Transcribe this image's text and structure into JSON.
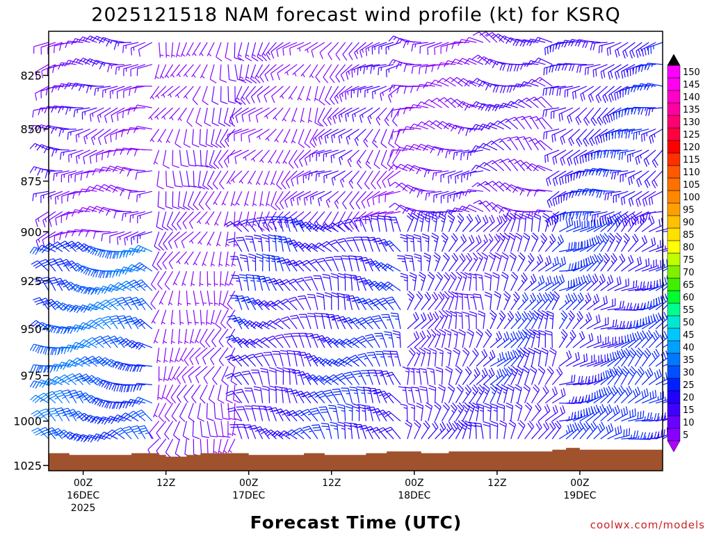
{
  "chart_data": {
    "type": "wind-barb-profile",
    "title": "2025121518 NAM forecast wind profile (kt) for KSRQ",
    "xlabel": "Forecast Time (UTC)",
    "ylabel": "",
    "credit": "coolwx.com/models",
    "yaxis": {
      "ticks": [
        "825",
        "850",
        "875",
        "900",
        "925",
        "950",
        "975",
        "1000",
        "1025"
      ],
      "values": [
        825,
        850,
        875,
        900,
        925,
        950,
        975,
        1000,
        1025
      ],
      "range": [
        805,
        1028
      ],
      "inverted": true
    },
    "xaxis": {
      "range_hours": [
        -5,
        84
      ],
      "ticks": [
        {
          "hour": 0,
          "l1": "00Z",
          "l2": "16DEC",
          "l3": "2025"
        },
        {
          "hour": 12,
          "l1": "12Z",
          "l2": "",
          "l3": ""
        },
        {
          "hour": 24,
          "l1": "00Z",
          "l2": "17DEC",
          "l3": ""
        },
        {
          "hour": 36,
          "l1": "12Z",
          "l2": "",
          "l3": ""
        },
        {
          "hour": 48,
          "l1": "00Z",
          "l2": "18DEC",
          "l3": ""
        },
        {
          "hour": 60,
          "l1": "12Z",
          "l2": "",
          "l3": ""
        },
        {
          "hour": 72,
          "l1": "00Z",
          "l2": "19DEC",
          "l3": ""
        }
      ]
    },
    "colorbar": {
      "labels": [
        "5",
        "10",
        "15",
        "20",
        "25",
        "30",
        "35",
        "40",
        "45",
        "50",
        "55",
        "60",
        "65",
        "70",
        "75",
        "80",
        "85",
        "90",
        "95",
        "100",
        "105",
        "110",
        "115",
        "120",
        "125",
        "130",
        "135",
        "140",
        "145",
        "150"
      ],
      "colors": [
        "#8800ff",
        "#6a00ff",
        "#3f00ff",
        "#2200ff",
        "#0020ff",
        "#0050ff",
        "#0078ff",
        "#00a0ff",
        "#00c8ff",
        "#00e8d0",
        "#00ff90",
        "#00ff30",
        "#40f000",
        "#80f000",
        "#c0ff00",
        "#ffff00",
        "#ffe000",
        "#ffc000",
        "#ffa000",
        "#ff8800",
        "#ff7000",
        "#ff5800",
        "#ff3000",
        "#ff0000",
        "#ff0040",
        "#ff0070",
        "#ff00a0",
        "#ff00c8",
        "#ff00f0",
        "#ff00ff"
      ]
    },
    "ground": {
      "color": "#a0522d",
      "surface_pressure": [
        {
          "hour": -5,
          "p": 1018
        },
        {
          "hour": -2,
          "p": 1018
        },
        {
          "hour": -2,
          "p": 1019
        },
        {
          "hour": 7,
          "p": 1019
        },
        {
          "hour": 7,
          "p": 1018
        },
        {
          "hour": 11,
          "p": 1018
        },
        {
          "hour": 11,
          "p": 1019
        },
        {
          "hour": 12,
          "p": 1019
        },
        {
          "hour": 12,
          "p": 1020
        },
        {
          "hour": 15,
          "p": 1020
        },
        {
          "hour": 15,
          "p": 1019
        },
        {
          "hour": 17,
          "p": 1019
        },
        {
          "hour": 17,
          "p": 1018
        },
        {
          "hour": 24,
          "p": 1018
        },
        {
          "hour": 24,
          "p": 1019
        },
        {
          "hour": 32,
          "p": 1019
        },
        {
          "hour": 32,
          "p": 1018
        },
        {
          "hour": 35,
          "p": 1018
        },
        {
          "hour": 35,
          "p": 1019
        },
        {
          "hour": 41,
          "p": 1019
        },
        {
          "hour": 41,
          "p": 1018
        },
        {
          "hour": 44,
          "p": 1018
        },
        {
          "hour": 44,
          "p": 1017
        },
        {
          "hour": 49,
          "p": 1017
        },
        {
          "hour": 49,
          "p": 1018
        },
        {
          "hour": 53,
          "p": 1018
        },
        {
          "hour": 53,
          "p": 1017
        },
        {
          "hour": 68,
          "p": 1017
        },
        {
          "hour": 68,
          "p": 1016
        },
        {
          "hour": 70,
          "p": 1016
        },
        {
          "hour": 70,
          "p": 1015
        },
        {
          "hour": 72,
          "p": 1015
        },
        {
          "hour": 72,
          "p": 1016
        },
        {
          "hour": 84,
          "p": 1016
        }
      ]
    },
    "barb_grid": {
      "hours_start": -5,
      "hours_end": 84,
      "hours_step": 1,
      "levels": [
        810,
        820,
        830,
        840,
        850,
        860,
        870,
        880,
        890,
        900,
        910,
        920,
        930,
        940,
        950,
        960,
        970,
        980,
        990,
        1000,
        1010,
        1020
      ],
      "regimes": [
        {
          "hour_max": 10,
          "p_min": 905,
          "dir": 300,
          "spd": 32
        },
        {
          "hour_max": 10,
          "p_min": 0,
          "dir": 265,
          "spd": 12
        },
        {
          "hour_max": 22,
          "p_min": 0,
          "dir": 200,
          "spd": 8
        },
        {
          "hour_max": 34,
          "p_min": 900,
          "dir": 330,
          "spd": 22
        },
        {
          "hour_max": 34,
          "p_min": 0,
          "dir": 220,
          "spd": 10
        },
        {
          "hour_max": 46,
          "p_min": 900,
          "dir": 330,
          "spd": 24
        },
        {
          "hour_max": 46,
          "p_min": 0,
          "dir": 230,
          "spd": 12
        },
        {
          "hour_max": 58,
          "p_min": 900,
          "dir": 20,
          "spd": 20
        },
        {
          "hour_max": 58,
          "p_min": 0,
          "dir": 280,
          "spd": 12
        },
        {
          "hour_max": 68,
          "p_min": 900,
          "dir": 30,
          "spd": 22
        },
        {
          "hour_max": 68,
          "p_min": 0,
          "dir": 300,
          "spd": 14
        },
        {
          "hour_max": 84,
          "p_min": 900,
          "dir": 60,
          "spd": 26
        },
        {
          "hour_max": 84,
          "p_min": 0,
          "dir": 250,
          "spd": 22
        }
      ]
    }
  }
}
